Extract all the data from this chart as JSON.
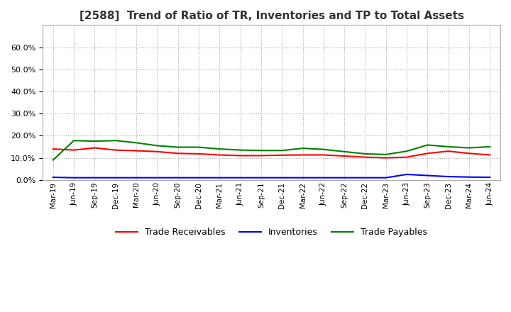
{
  "title": "[2588]  Trend of Ratio of TR, Inventories and TP to Total Assets",
  "x_labels": [
    "Mar-19",
    "Jun-19",
    "Sep-19",
    "Dec-19",
    "Mar-20",
    "Jun-20",
    "Sep-20",
    "Dec-20",
    "Mar-21",
    "Jun-21",
    "Sep-21",
    "Dec-21",
    "Mar-22",
    "Jun-22",
    "Sep-22",
    "Dec-22",
    "Mar-23",
    "Jun-23",
    "Sep-23",
    "Dec-23",
    "Mar-24",
    "Jun-24"
  ],
  "trade_receivables": [
    0.14,
    0.135,
    0.145,
    0.135,
    0.132,
    0.128,
    0.12,
    0.118,
    0.113,
    0.11,
    0.11,
    0.112,
    0.113,
    0.113,
    0.108,
    0.103,
    0.1,
    0.103,
    0.12,
    0.13,
    0.12,
    0.113
  ],
  "inventories": [
    0.012,
    0.01,
    0.01,
    0.01,
    0.01,
    0.01,
    0.01,
    0.01,
    0.01,
    0.01,
    0.01,
    0.01,
    0.01,
    0.01,
    0.01,
    0.01,
    0.01,
    0.025,
    0.02,
    0.015,
    0.013,
    0.012
  ],
  "trade_payables": [
    0.09,
    0.178,
    0.175,
    0.178,
    0.168,
    0.155,
    0.148,
    0.148,
    0.14,
    0.135,
    0.133,
    0.133,
    0.143,
    0.138,
    0.128,
    0.118,
    0.115,
    0.13,
    0.158,
    0.15,
    0.145,
    0.15
  ],
  "ylim": [
    0.0,
    0.7
  ],
  "yticks": [
    0.0,
    0.1,
    0.2,
    0.3,
    0.4,
    0.5,
    0.6
  ],
  "color_tr": "#FF0000",
  "color_inv": "#0000FF",
  "color_tp": "#008000",
  "background_color": "#FFFFFF",
  "grid_color": "#AAAAAA",
  "title_fontsize": 11,
  "legend_labels": [
    "Trade Receivables",
    "Inventories",
    "Trade Payables"
  ]
}
